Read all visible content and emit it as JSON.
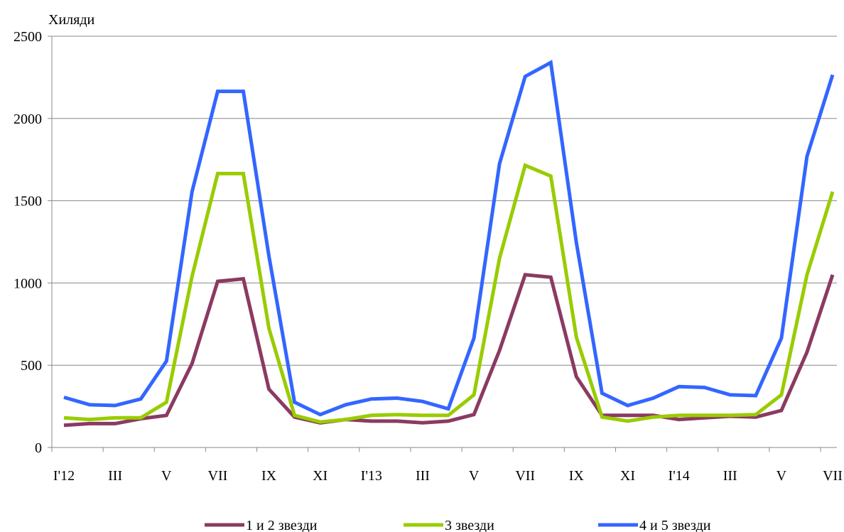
{
  "chart_data": {
    "type": "line",
    "title": "",
    "ylabel": "Хиляди",
    "xlabel": "",
    "ylim": [
      0,
      2500
    ],
    "yticks": [
      0,
      500,
      1000,
      1500,
      2000,
      2500
    ],
    "grid": true,
    "legend_position": "bottom",
    "x_tick_labels": [
      "I'12",
      "III",
      "V",
      "VII",
      "IX",
      "XI",
      "I'13",
      "III",
      "V",
      "VII",
      "IX",
      "XI",
      "I'14",
      "III",
      "V",
      "VII"
    ],
    "series": [
      {
        "name": "1 и 2 звезди",
        "color": "#8B3A62",
        "values": [
          135,
          145,
          145,
          175,
          195,
          510,
          1010,
          1025,
          355,
          185,
          150,
          170,
          160,
          160,
          150,
          160,
          200,
          590,
          1050,
          1035,
          430,
          195,
          195,
          195,
          170,
          180,
          190,
          185,
          225,
          580,
          1050
        ]
      },
      {
        "name": "3 звезди",
        "color": "#99CC00",
        "values": [
          180,
          170,
          180,
          180,
          275,
          1040,
          1665,
          1665,
          725,
          195,
          155,
          170,
          195,
          200,
          195,
          195,
          320,
          1150,
          1715,
          1650,
          670,
          185,
          160,
          185,
          195,
          195,
          195,
          200,
          320,
          1050,
          1555
        ]
      },
      {
        "name": "4 и 5 звезди",
        "color": "#3366FF",
        "values": [
          305,
          260,
          255,
          295,
          525,
          1555,
          2165,
          2165,
          1165,
          275,
          200,
          260,
          295,
          300,
          280,
          235,
          665,
          1725,
          2255,
          2340,
          1245,
          330,
          255,
          300,
          370,
          365,
          320,
          315,
          665,
          1770,
          2265
        ]
      }
    ]
  }
}
